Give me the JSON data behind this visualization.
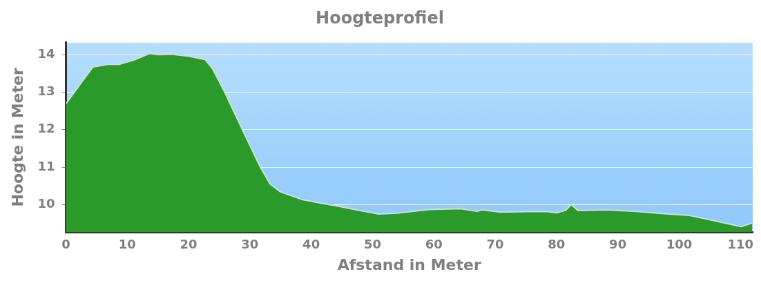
{
  "chart_data": {
    "type": "area",
    "title": "Hoogteprofiel",
    "xlabel": "Afstand in Meter",
    "ylabel": "Hoogte in Meter",
    "x": [
      0,
      2.0,
      4.4,
      6.9,
      8.7,
      11.3,
      13.6,
      15.0,
      17.4,
      19.9,
      22.7,
      23.9,
      25.9,
      28.8,
      31.7,
      33.3,
      35.0,
      38.6,
      41.9,
      44.3,
      46.7,
      51.0,
      54.0,
      59.2,
      64.4,
      67.0,
      67.9,
      70.9,
      78.3,
      80.0,
      81.5,
      82.4,
      83.5,
      88.3,
      93.0,
      97.4,
      101.7,
      106.0,
      110.1,
      111.9
    ],
    "series": [
      {
        "color": "#2a9a2a",
        "values": [
          12.69,
          13.14,
          13.67,
          13.74,
          13.74,
          13.87,
          14.03,
          14.0,
          14.01,
          13.96,
          13.87,
          13.63,
          13.0,
          11.99,
          11.0,
          10.55,
          10.34,
          10.13,
          10.03,
          9.96,
          9.88,
          9.75,
          9.77,
          9.87,
          9.89,
          9.82,
          9.86,
          9.8,
          9.82,
          9.78,
          9.85,
          10.0,
          9.84,
          9.86,
          9.82,
          9.76,
          9.71,
          9.56,
          9.41,
          9.51
        ]
      }
    ],
    "xlim": [
      0,
      112
    ],
    "xticks": [
      0,
      10,
      20,
      30,
      40,
      50,
      60,
      70,
      80,
      90,
      100,
      110
    ],
    "ylim": [
      9.27,
      14.32
    ],
    "yticks": [
      10,
      11,
      12,
      13,
      14
    ],
    "grid": "y",
    "legend": false,
    "marker": "none",
    "line_style": "solid"
  }
}
